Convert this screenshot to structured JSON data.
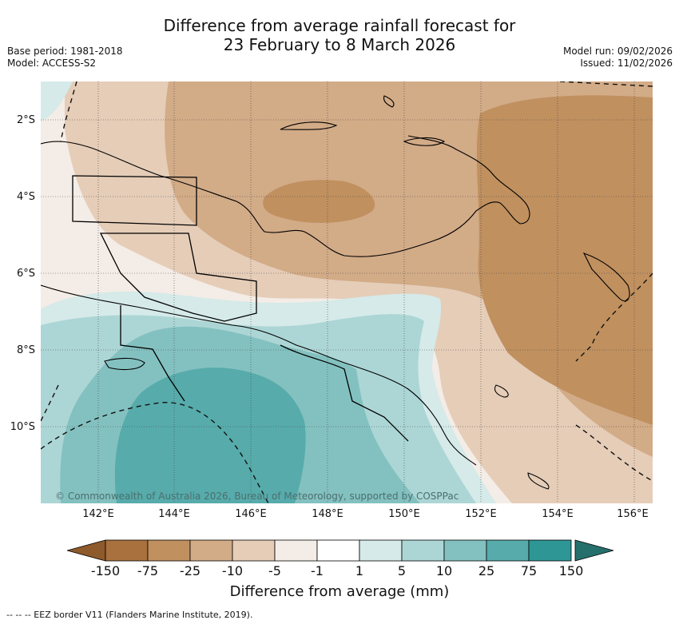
{
  "title": {
    "line1": "Difference from average rainfall forecast for",
    "line2": "23 February to 8 March 2026"
  },
  "meta_left": {
    "base_period": "Base period: 1981-2018",
    "model": "Model: ACCESS-S2"
  },
  "meta_right": {
    "model_run": "Model run: 09/02/2026",
    "issued": "Issued: 11/02/2026"
  },
  "map": {
    "lat_labels": [
      "2°S",
      "4°S",
      "6°S",
      "8°S",
      "10°S"
    ],
    "lon_labels": [
      "142°E",
      "144°E",
      "146°E",
      "148°E",
      "150°E",
      "152°E",
      "154°E",
      "156°E"
    ],
    "copyright": "© Commonwealth of Australia 2026, Bureau of Meteorology, supported by COSPPac"
  },
  "colorbar": {
    "title": "Difference from average (mm)",
    "tick_labels": [
      "-150",
      "-75",
      "-25",
      "-10",
      "-5",
      "-1",
      "1",
      "5",
      "10",
      "25",
      "75",
      "150"
    ],
    "colors": [
      "#a8713d",
      "#c0905f",
      "#d2ab87",
      "#e5cdb8",
      "#f4ece6",
      "#ffffff",
      "#d5eae9",
      "#acd6d5",
      "#83c1c0",
      "#57abab",
      "#2e9796"
    ],
    "under_color": "#8f5a2b",
    "over_color": "#256f6c"
  },
  "footnote": {
    "eez": "--  --  -- EEZ border V11 (Flanders Marine Institute, 2019)."
  }
}
